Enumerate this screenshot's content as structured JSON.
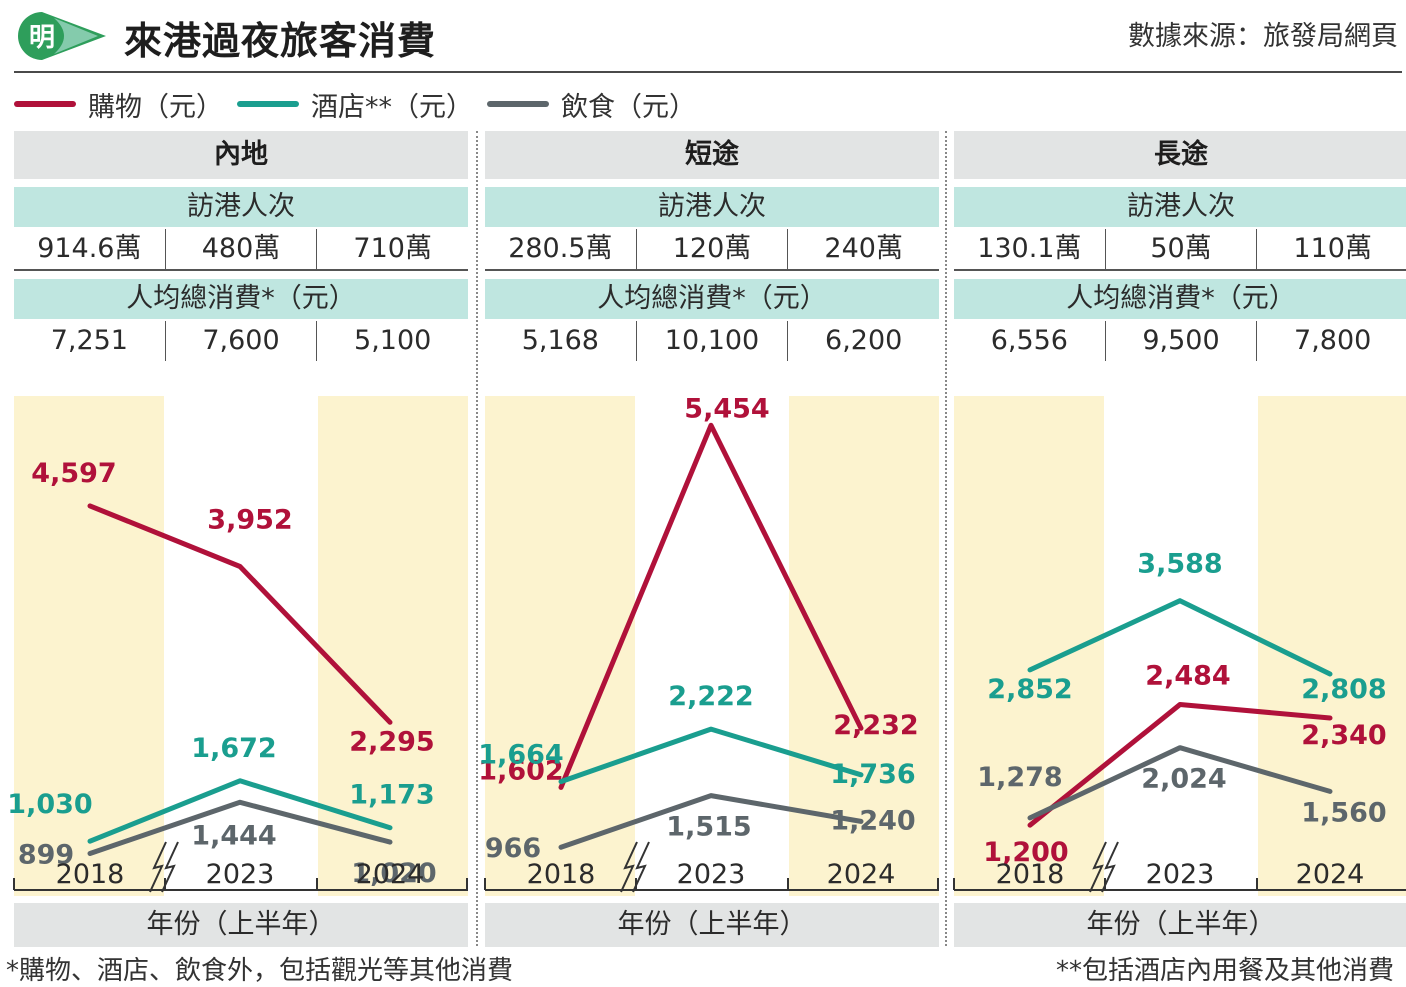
{
  "header": {
    "logo_char": "明",
    "title": "來港過夜旅客消費",
    "source": "數據來源：旅發局網頁"
  },
  "colors": {
    "shopping": "#b0113a",
    "hotel": "#1a9e8f",
    "dining": "#5d666b",
    "logo_green": "#2e9e5b",
    "highlight_band": "#fcf3cf",
    "header_gray": "#e2e4e4",
    "teal_band": "#bfe6e0"
  },
  "legend": [
    {
      "label": "購物（元）",
      "color": "#b0113a"
    },
    {
      "label": "酒店**（元）",
      "color": "#1a9e8f"
    },
    {
      "label": "飲食（元）",
      "color": "#5d666b"
    }
  ],
  "chart_data": [
    {
      "type": "line",
      "title": "內地",
      "x": [
        "2018",
        "2023",
        "2024"
      ],
      "x_axis_label": "年份（上半年）",
      "visitors_label": "訪港人次",
      "visitors": [
        "914.6萬",
        "480萬",
        "710萬"
      ],
      "spend_label": "人均總消費*（元）",
      "per_capita_total": [
        "7,251",
        "7,600",
        "5,100"
      ],
      "series": [
        {
          "name": "購物（元）",
          "key": "shopping",
          "values": [
            4597,
            3952,
            2295
          ],
          "labels": [
            "4,597",
            "3,952",
            "2,295"
          ]
        },
        {
          "name": "酒店**（元）",
          "key": "hotel",
          "values": [
            1030,
            1672,
            1173
          ],
          "labels": [
            "1,030",
            "1,672",
            "1,173"
          ]
        },
        {
          "name": "飲食（元）",
          "key": "dining",
          "values": [
            899,
            1444,
            1020
          ],
          "labels": [
            "899",
            "1,444",
            "1,020"
          ]
        }
      ]
    },
    {
      "type": "line",
      "title": "短途",
      "x": [
        "2018",
        "2023",
        "2024"
      ],
      "x_axis_label": "年份（上半年）",
      "visitors_label": "訪港人次",
      "visitors": [
        "280.5萬",
        "120萬",
        "240萬"
      ],
      "spend_label": "人均總消費*（元）",
      "per_capita_total": [
        "5,168",
        "10,100",
        "6,200"
      ],
      "series": [
        {
          "name": "購物（元）",
          "key": "shopping",
          "values": [
            1602,
            5454,
            2232
          ],
          "labels": [
            "1,602",
            "5,454",
            "2,232"
          ]
        },
        {
          "name": "酒店**（元）",
          "key": "hotel",
          "values": [
            1664,
            2222,
            1736
          ],
          "labels": [
            "1,664",
            "2,222",
            "1,736"
          ]
        },
        {
          "name": "飲食（元）",
          "key": "dining",
          "values": [
            966,
            1515,
            1240
          ],
          "labels": [
            "966",
            "1,515",
            "1,240"
          ]
        }
      ]
    },
    {
      "type": "line",
      "title": "長途",
      "x": [
        "2018",
        "2023",
        "2024"
      ],
      "x_axis_label": "年份（上半年）",
      "visitors_label": "訪港人次",
      "visitors": [
        "130.1萬",
        "50萬",
        "110萬"
      ],
      "spend_label": "人均總消費*（元）",
      "per_capita_total": [
        "6,556",
        "9,500",
        "7,800"
      ],
      "series": [
        {
          "name": "購物（元）",
          "key": "shopping",
          "values": [
            1200,
            2484,
            2340
          ],
          "labels": [
            "1,200",
            "2,484",
            "2,340"
          ]
        },
        {
          "name": "酒店**（元）",
          "key": "hotel",
          "values": [
            2852,
            3588,
            2808
          ],
          "labels": [
            "2,852",
            "3,588",
            "2,808"
          ]
        },
        {
          "name": "飲食（元）",
          "key": "dining",
          "values": [
            1278,
            2024,
            1560
          ],
          "labels": [
            "1,278",
            "2,024",
            "1,560"
          ]
        }
      ]
    }
  ],
  "footnotes": {
    "left": "*購物、酒店、飲食外，包括觀光等其他消費",
    "right": "**包括酒店內用餐及其他消費"
  }
}
